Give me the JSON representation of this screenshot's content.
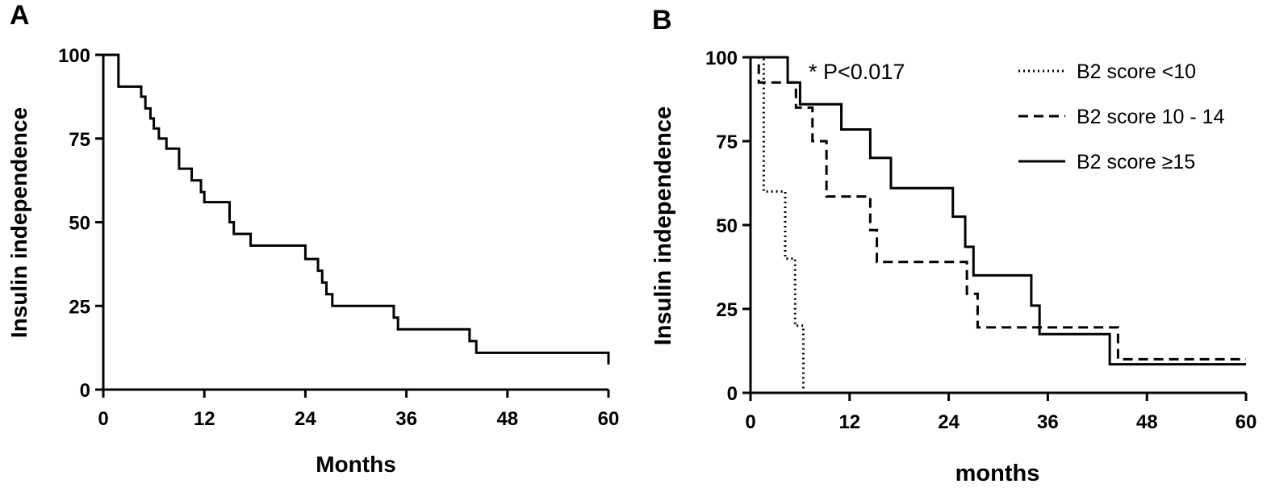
{
  "chart_data": [
    {
      "panel": "A",
      "type": "line",
      "step": true,
      "xlabel": "Months",
      "ylabel": "Insulin independence",
      "xlim": [
        0,
        60
      ],
      "ylim": [
        0,
        100
      ],
      "x_ticks": [
        "0",
        "12",
        "24",
        "36",
        "48",
        "60"
      ],
      "y_ticks": [
        "0",
        "25",
        "50",
        "75",
        "100"
      ],
      "grid": false,
      "series": [
        {
          "color": "#000000",
          "dash": "solid",
          "x": [
            0,
            1.8,
            4.5,
            5,
            5.6,
            6,
            6.6,
            7.5,
            9,
            10.5,
            11.6,
            12,
            15,
            15.5,
            17.5,
            24,
            25.5,
            26,
            26.5,
            27.2,
            34.5,
            35,
            43.5,
            44.3,
            60
          ],
          "y": [
            100,
            90.5,
            87.5,
            84,
            81,
            78,
            75,
            72,
            66,
            62.5,
            59,
            56,
            50,
            46.5,
            43,
            39,
            35.5,
            32,
            28.5,
            25,
            21.5,
            18,
            14.5,
            11,
            7.5
          ]
        }
      ]
    },
    {
      "panel": "B",
      "type": "line",
      "step": true,
      "xlabel": "months",
      "ylabel": "Insulin independence",
      "xlim": [
        0,
        60
      ],
      "ylim": [
        0,
        100
      ],
      "x_ticks": [
        "0",
        "12",
        "24",
        "36",
        "48",
        "60"
      ],
      "y_ticks": [
        "0",
        "25",
        "50",
        "75",
        "100"
      ],
      "grid": false,
      "annotation": "* P<0.017",
      "legend_position": "top-right",
      "series": [
        {
          "name": "B2 score <10",
          "dash": "dotted",
          "x": [
            0,
            1.6,
            4.2,
            5.4,
            6.4
          ],
          "y": [
            100,
            60,
            40,
            20,
            0
          ]
        },
        {
          "name": "B2 score 10 - 14",
          "dash": "dashed",
          "x": [
            0,
            1,
            5.5,
            7.5,
            9.2,
            14.5,
            15.3,
            26.2,
            27.5,
            44.5,
            60
          ],
          "y": [
            100,
            92.5,
            85,
            75,
            58.5,
            48.5,
            39,
            29.5,
            19.5,
            10,
            10
          ]
        },
        {
          "name": "B2 score ≥15",
          "dash": "solid",
          "x": [
            0,
            4.5,
            6,
            11,
            14.5,
            17,
            24.5,
            26,
            27,
            34,
            35,
            43.5,
            60
          ],
          "y": [
            100,
            92.5,
            86,
            78.5,
            70,
            61,
            52.5,
            43.5,
            35,
            26,
            17.5,
            8.5,
            8.5
          ]
        }
      ]
    }
  ]
}
